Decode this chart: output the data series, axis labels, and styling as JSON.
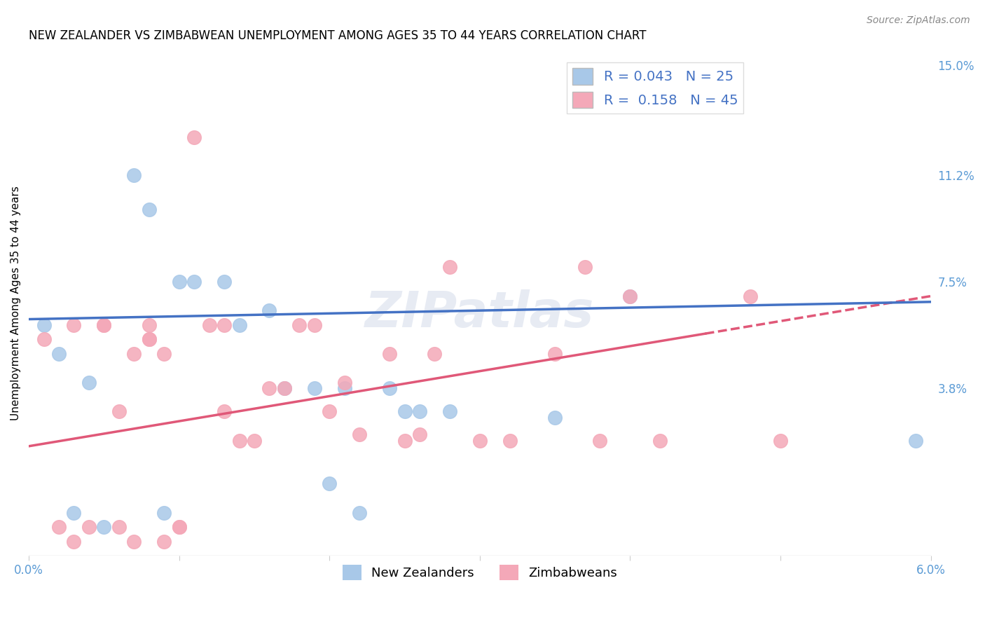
{
  "title": "NEW ZEALANDER VS ZIMBABWEAN UNEMPLOYMENT AMONG AGES 35 TO 44 YEARS CORRELATION CHART",
  "source": "Source: ZipAtlas.com",
  "ylabel": "Unemployment Among Ages 35 to 44 years",
  "xlim": [
    0.0,
    0.06
  ],
  "ylim": [
    -0.02,
    0.155
  ],
  "nz_R": "0.043",
  "nz_N": "25",
  "zim_R": "0.158",
  "zim_N": "45",
  "nz_color": "#a8c8e8",
  "zim_color": "#f4a8b8",
  "nz_line_color": "#4472c4",
  "zim_line_color": "#e05878",
  "background_color": "#ffffff",
  "grid_color": "#c8c8c8",
  "ytick_positions": [
    0.0,
    0.038,
    0.075,
    0.112,
    0.15
  ],
  "ytick_labels": [
    "",
    "3.8%",
    "7.5%",
    "11.2%",
    "15.0%"
  ],
  "nz_x": [
    0.001,
    0.002,
    0.003,
    0.004,
    0.005,
    0.007,
    0.008,
    0.009,
    0.01,
    0.011,
    0.013,
    0.014,
    0.016,
    0.017,
    0.019,
    0.02,
    0.021,
    0.022,
    0.024,
    0.025,
    0.026,
    0.028,
    0.035,
    0.04,
    0.059
  ],
  "nz_y": [
    0.06,
    0.05,
    -0.005,
    0.04,
    -0.01,
    0.112,
    0.1,
    -0.005,
    0.075,
    0.075,
    0.075,
    0.06,
    0.065,
    0.038,
    0.038,
    0.005,
    0.038,
    -0.005,
    0.038,
    0.03,
    0.03,
    0.03,
    0.028,
    0.07,
    0.02
  ],
  "zim_x": [
    0.001,
    0.002,
    0.003,
    0.003,
    0.004,
    0.005,
    0.005,
    0.006,
    0.006,
    0.007,
    0.007,
    0.008,
    0.008,
    0.008,
    0.009,
    0.009,
    0.01,
    0.01,
    0.011,
    0.012,
    0.013,
    0.013,
    0.014,
    0.015,
    0.016,
    0.017,
    0.018,
    0.019,
    0.02,
    0.021,
    0.022,
    0.024,
    0.025,
    0.026,
    0.027,
    0.028,
    0.03,
    0.032,
    0.035,
    0.037,
    0.038,
    0.04,
    0.042,
    0.048,
    0.05
  ],
  "zim_y": [
    0.055,
    -0.01,
    0.06,
    -0.015,
    -0.01,
    0.06,
    0.06,
    -0.01,
    0.03,
    -0.015,
    0.05,
    0.06,
    0.055,
    0.055,
    -0.015,
    0.05,
    -0.01,
    -0.01,
    0.125,
    0.06,
    0.06,
    0.03,
    0.02,
    0.02,
    0.038,
    0.038,
    0.06,
    0.06,
    0.03,
    0.04,
    0.022,
    0.05,
    0.02,
    0.022,
    0.05,
    0.08,
    0.02,
    0.02,
    0.05,
    0.08,
    0.02,
    0.07,
    0.02,
    0.07,
    0.02
  ]
}
